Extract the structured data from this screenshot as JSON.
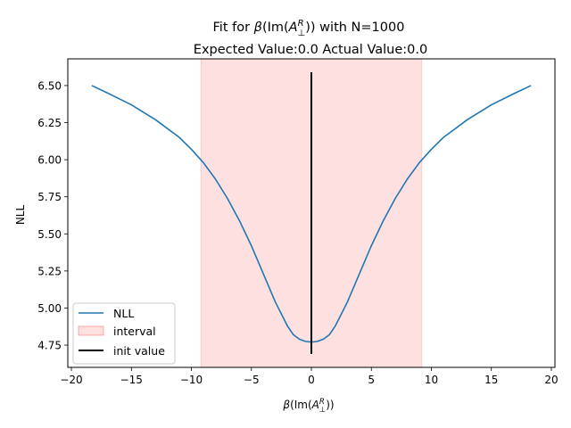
{
  "chart_data": {
    "type": "line",
    "title_line1_prefix": "Fit for ",
    "title_line1_suffix": " with N=1000",
    "title_line2": "Expected Value:0.0 Actual Value:0.0",
    "xlabel": "β(Im(A⊥R))",
    "ylabel": "NLL",
    "xlim": [
      -20.3,
      20.3
    ],
    "ylim": [
      4.6,
      6.68
    ],
    "x_ticks": [
      -20,
      -15,
      -10,
      -5,
      0,
      5,
      10,
      15,
      20
    ],
    "x_tick_labels": [
      "−20",
      "−15",
      "−10",
      "−5",
      "0",
      "5",
      "10",
      "15",
      "20"
    ],
    "y_ticks": [
      4.75,
      5.0,
      5.25,
      5.5,
      5.75,
      6.0,
      6.25,
      6.5
    ],
    "y_tick_labels": [
      "4.75",
      "5.00",
      "5.25",
      "5.50",
      "5.75",
      "6.00",
      "6.25",
      "6.50"
    ],
    "grid": false,
    "legend_position": "lower-left",
    "series": [
      {
        "name": "NLL",
        "color": "#1f77b4",
        "x": [
          -18.3,
          -17,
          -15,
          -13,
          -11,
          -10,
          -9,
          -8,
          -7,
          -6,
          -5,
          -4,
          -3,
          -2,
          -1.5,
          -1,
          -0.5,
          0,
          0.5,
          1,
          1.5,
          2,
          3,
          4,
          5,
          6,
          7,
          8,
          9,
          10,
          11,
          13,
          15,
          17,
          18.3
        ],
        "y": [
          6.5,
          6.45,
          6.37,
          6.27,
          6.15,
          6.07,
          5.98,
          5.87,
          5.74,
          5.59,
          5.42,
          5.23,
          5.04,
          4.88,
          4.82,
          4.79,
          4.775,
          4.77,
          4.775,
          4.79,
          4.82,
          4.88,
          5.04,
          5.23,
          5.42,
          5.59,
          5.74,
          5.87,
          5.98,
          6.07,
          6.15,
          6.27,
          6.37,
          6.45,
          6.5
        ]
      }
    ],
    "interval": {
      "name": "interval",
      "x_min": -9.2,
      "x_max": 9.2,
      "color": "#ff0000"
    },
    "init_value": {
      "name": "init value",
      "x": 0,
      "y_min": 4.69,
      "y_max": 6.59,
      "color": "#000000"
    }
  }
}
